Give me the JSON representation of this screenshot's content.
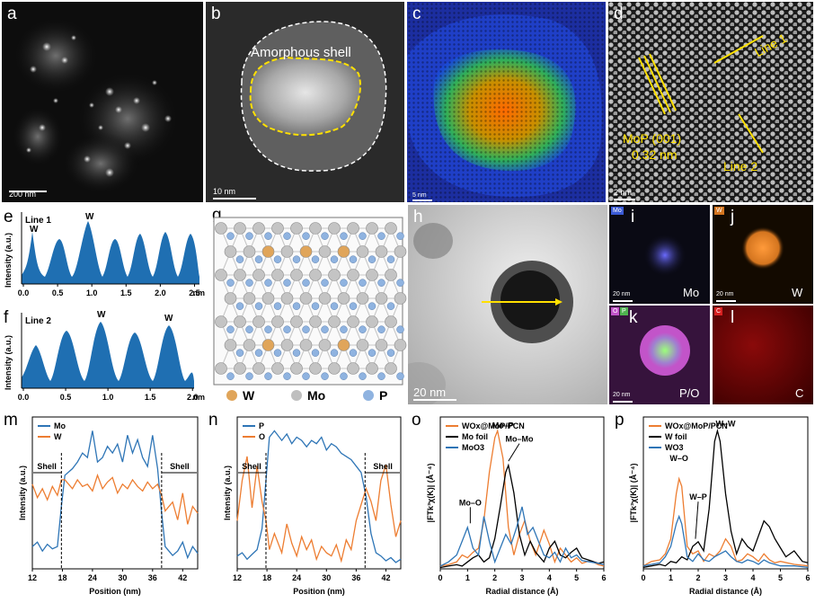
{
  "panels": {
    "a": {
      "letter": "a",
      "scale": "200 nm"
    },
    "b": {
      "letter": "b",
      "scale": "10 nm",
      "label": "Amorphous shell"
    },
    "c": {
      "letter": "c",
      "scale": "5 nm"
    },
    "d": {
      "letter": "d",
      "scale": "2 nm",
      "line1": "Line 1",
      "line2": "Line 2",
      "plane": "MoP (001)",
      "spacing": "0.32 nm"
    },
    "e": {
      "letter": "e",
      "title": "Line 1",
      "ylabel": "Intensity (a.u.)",
      "ticks": [
        "0.0",
        "0.5",
        "1.0",
        "1.5",
        "2.0",
        "2.5"
      ],
      "unit": "nm",
      "peak_label": "W"
    },
    "f": {
      "letter": "f",
      "title": "Line 2",
      "ylabel": "Intensity (a.u.)",
      "ticks": [
        "0.0",
        "0.5",
        "1.0",
        "1.5",
        "2.0"
      ],
      "unit": "nm",
      "peak_label": "W"
    },
    "g": {
      "letter": "g",
      "legend": [
        "W",
        "Mo",
        "P"
      ]
    },
    "h": {
      "letter": "h",
      "scale": "20 nm"
    },
    "i": {
      "letter": "i",
      "tag": "Mo",
      "label": "Mo",
      "scale": "20 nm"
    },
    "j": {
      "letter": "j",
      "tag": "W",
      "label": "W",
      "scale": "20 nm"
    },
    "k": {
      "letter": "k",
      "tag1": "O",
      "tag2": "P",
      "label": "P/O",
      "scale": "20 nm"
    },
    "l": {
      "letter": "l",
      "tag": "C",
      "label": "C"
    }
  },
  "chart_data": [
    {
      "id": "m",
      "type": "line",
      "title": "",
      "xlabel": "Position (nm)",
      "ylabel": "Intensity (a.u.)",
      "xlim": [
        12,
        45
      ],
      "xticks": [
        "12",
        "18",
        "24",
        "30",
        "36",
        "42"
      ],
      "annotations": [
        "Shell",
        "Shell"
      ],
      "series": [
        {
          "name": "Mo",
          "color": "#2E75B6",
          "x": [
            12,
            13,
            14,
            15,
            16,
            17,
            17.8,
            18.5,
            20,
            21,
            22,
            23,
            24,
            25,
            26,
            27,
            28,
            29,
            30,
            31,
            32,
            33,
            34,
            35,
            36,
            37,
            37.8,
            38.5,
            40,
            41,
            42,
            43,
            44,
            45
          ],
          "y": [
            0.1,
            0.12,
            0.08,
            0.11,
            0.09,
            0.1,
            0.28,
            0.42,
            0.45,
            0.48,
            0.52,
            0.5,
            0.62,
            0.48,
            0.5,
            0.55,
            0.52,
            0.56,
            0.48,
            0.6,
            0.52,
            0.58,
            0.5,
            0.46,
            0.6,
            0.45,
            0.25,
            0.1,
            0.06,
            0.08,
            0.12,
            0.05,
            0.1,
            0.07
          ]
        },
        {
          "name": "W",
          "color": "#ED7D31",
          "x": [
            12,
            13,
            14,
            15,
            16,
            17,
            17.8,
            18.5,
            20,
            21,
            22,
            23,
            24,
            25,
            26,
            27,
            28,
            29,
            30,
            31,
            32,
            33,
            34,
            35,
            36,
            37,
            37.8,
            38.5,
            40,
            41,
            42,
            43,
            44,
            45
          ],
          "y": [
            0.38,
            0.32,
            0.36,
            0.31,
            0.37,
            0.33,
            0.4,
            0.4,
            0.36,
            0.4,
            0.37,
            0.38,
            0.35,
            0.42,
            0.36,
            0.39,
            0.41,
            0.34,
            0.38,
            0.36,
            0.4,
            0.37,
            0.35,
            0.39,
            0.36,
            0.38,
            0.33,
            0.26,
            0.3,
            0.22,
            0.34,
            0.2,
            0.28,
            0.25
          ]
        }
      ]
    },
    {
      "id": "n",
      "type": "line",
      "title": "",
      "xlabel": "Position (nm)",
      "ylabel": "Intensity (a.u.)",
      "xlim": [
        12,
        45
      ],
      "xticks": [
        "12",
        "18",
        "24",
        "30",
        "36",
        "42"
      ],
      "annotations": [
        "Shell",
        "Shell"
      ],
      "series": [
        {
          "name": "P",
          "color": "#2E75B6",
          "x": [
            12,
            13,
            14,
            15,
            16,
            17,
            17.8,
            18.5,
            19.5,
            21,
            22,
            23,
            24,
            25,
            26,
            27,
            28,
            29,
            30,
            31,
            32,
            33,
            34,
            35,
            36,
            37,
            38,
            39,
            40,
            41,
            42,
            43,
            44,
            45
          ],
          "y": [
            0.08,
            0.1,
            0.06,
            0.09,
            0.12,
            0.25,
            0.55,
            0.82,
            0.86,
            0.8,
            0.84,
            0.78,
            0.82,
            0.8,
            0.76,
            0.8,
            0.78,
            0.82,
            0.74,
            0.78,
            0.76,
            0.72,
            0.7,
            0.68,
            0.64,
            0.6,
            0.45,
            0.22,
            0.1,
            0.08,
            0.05,
            0.07,
            0.04,
            0.06
          ]
        },
        {
          "name": "O",
          "color": "#ED7D31",
          "x": [
            12,
            13,
            14,
            15,
            16,
            17,
            17.8,
            18.5,
            19.5,
            21,
            22,
            23,
            24,
            25,
            26,
            27,
            28,
            29,
            30,
            31,
            32,
            33,
            34,
            35,
            36,
            37,
            38,
            39,
            40,
            41,
            42,
            43,
            44,
            45
          ],
          "y": [
            0.3,
            0.55,
            0.7,
            0.38,
            0.64,
            0.42,
            0.3,
            0.12,
            0.22,
            0.1,
            0.28,
            0.16,
            0.08,
            0.2,
            0.12,
            0.18,
            0.06,
            0.14,
            0.1,
            0.08,
            0.15,
            0.05,
            0.18,
            0.12,
            0.3,
            0.4,
            0.5,
            0.42,
            0.3,
            0.55,
            0.65,
            0.4,
            0.2,
            0.3
          ]
        }
      ]
    },
    {
      "id": "o",
      "type": "line",
      "title": "",
      "xlabel": "Radial distance (Å)",
      "ylabel": "|FTk³χ(K)| (Å⁻⁴)",
      "xlim": [
        0,
        6
      ],
      "xticks": [
        "0",
        "1",
        "2",
        "3",
        "4",
        "5",
        "6"
      ],
      "annotations": [
        "Mo–P",
        "Mo–Mo",
        "Mo–O"
      ],
      "series": [
        {
          "name": "WOx@MoP/PCN",
          "color": "#ED7D31",
          "x": [
            0,
            0.3,
            0.6,
            0.8,
            1.0,
            1.2,
            1.4,
            1.6,
            1.8,
            2.0,
            2.1,
            2.3,
            2.5,
            2.7,
            2.9,
            3.1,
            3.3,
            3.5,
            3.8,
            4.0,
            4.2,
            4.4,
            4.6,
            4.8,
            5.0,
            5.2,
            5.5,
            5.8,
            6.0
          ],
          "y": [
            0.02,
            0.03,
            0.05,
            0.1,
            0.08,
            0.12,
            0.15,
            0.35,
            0.7,
            0.95,
            1.0,
            0.8,
            0.3,
            0.1,
            0.25,
            0.35,
            0.2,
            0.1,
            0.28,
            0.18,
            0.05,
            0.15,
            0.1,
            0.05,
            0.08,
            0.04,
            0.06,
            0.03,
            0.02
          ]
        },
        {
          "name": "Mo foil",
          "color": "#000000",
          "x": [
            0,
            0.3,
            0.6,
            0.8,
            1.0,
            1.2,
            1.4,
            1.6,
            1.8,
            2.0,
            2.2,
            2.4,
            2.5,
            2.7,
            2.9,
            3.1,
            3.3,
            3.5,
            3.8,
            4.0,
            4.2,
            4.4,
            4.6,
            4.8,
            5.0,
            5.2,
            5.5,
            5.8,
            6.0
          ],
          "y": [
            0.01,
            0.02,
            0.03,
            0.02,
            0.05,
            0.08,
            0.1,
            0.05,
            0.08,
            0.22,
            0.45,
            0.7,
            0.75,
            0.55,
            0.25,
            0.1,
            0.2,
            0.12,
            0.05,
            0.15,
            0.2,
            0.1,
            0.08,
            0.12,
            0.15,
            0.08,
            0.06,
            0.04,
            0.05
          ]
        },
        {
          "name": "MoO3",
          "color": "#2E75B6",
          "x": [
            0,
            0.3,
            0.6,
            0.8,
            1.0,
            1.2,
            1.4,
            1.6,
            1.8,
            2.0,
            2.2,
            2.4,
            2.6,
            2.8,
            3.0,
            3.2,
            3.4,
            3.6,
            3.8,
            4.0,
            4.2,
            4.4,
            4.6,
            4.8,
            5.0,
            5.2,
            5.5,
            5.8,
            6.0
          ],
          "y": [
            0.02,
            0.05,
            0.1,
            0.2,
            0.3,
            0.15,
            0.1,
            0.38,
            0.2,
            0.05,
            0.15,
            0.25,
            0.18,
            0.3,
            0.45,
            0.25,
            0.3,
            0.2,
            0.1,
            0.08,
            0.12,
            0.05,
            0.15,
            0.08,
            0.1,
            0.06,
            0.05,
            0.04,
            0.03
          ]
        }
      ]
    },
    {
      "id": "p",
      "type": "line",
      "title": "",
      "xlabel": "Radial distance (Å)",
      "ylabel": "|FTk³χ(K)| (Å⁻⁴)",
      "xlim": [
        0,
        6
      ],
      "xticks": [
        "0",
        "1",
        "2",
        "3",
        "4",
        "5",
        "6"
      ],
      "annotations": [
        "W–W",
        "W–O",
        "W–P"
      ],
      "series": [
        {
          "name": "WOx@MoP/PCN",
          "color": "#ED7D31",
          "x": [
            0,
            0.3,
            0.6,
            0.8,
            1.0,
            1.2,
            1.3,
            1.4,
            1.6,
            1.8,
            2.0,
            2.2,
            2.4,
            2.6,
            2.8,
            3.0,
            3.2,
            3.4,
            3.6,
            3.8,
            4.0,
            4.2,
            4.4,
            4.6,
            4.8,
            5.0,
            5.5,
            6.0
          ],
          "y": [
            0.02,
            0.05,
            0.06,
            0.1,
            0.2,
            0.5,
            0.6,
            0.55,
            0.15,
            0.1,
            0.12,
            0.05,
            0.1,
            0.08,
            0.12,
            0.2,
            0.15,
            0.05,
            0.06,
            0.1,
            0.08,
            0.05,
            0.1,
            0.06,
            0.04,
            0.05,
            0.03,
            0.02
          ]
        },
        {
          "name": "W foil",
          "color": "#000000",
          "x": [
            0,
            0.3,
            0.6,
            0.8,
            1.0,
            1.2,
            1.4,
            1.6,
            1.8,
            2.0,
            2.2,
            2.4,
            2.6,
            2.7,
            2.8,
            3.0,
            3.2,
            3.4,
            3.6,
            3.8,
            4.0,
            4.2,
            4.4,
            4.6,
            4.8,
            5.0,
            5.2,
            5.5,
            5.8,
            6.0
          ],
          "y": [
            0.01,
            0.02,
            0.03,
            0.02,
            0.05,
            0.04,
            0.08,
            0.06,
            0.15,
            0.18,
            0.12,
            0.4,
            0.85,
            0.92,
            0.85,
            0.5,
            0.25,
            0.1,
            0.2,
            0.15,
            0.12,
            0.22,
            0.32,
            0.28,
            0.2,
            0.14,
            0.08,
            0.12,
            0.05,
            0.04
          ]
        },
        {
          "name": "WO3",
          "color": "#2E75B6",
          "x": [
            0,
            0.3,
            0.6,
            0.8,
            1.0,
            1.2,
            1.3,
            1.4,
            1.6,
            1.8,
            2.0,
            2.2,
            2.4,
            2.6,
            2.8,
            3.0,
            3.2,
            3.4,
            3.6,
            3.8,
            4.0,
            4.2,
            4.4,
            4.6,
            4.8,
            5.0,
            5.5,
            6.0
          ],
          "y": [
            0.02,
            0.03,
            0.04,
            0.08,
            0.15,
            0.3,
            0.35,
            0.3,
            0.08,
            0.05,
            0.1,
            0.06,
            0.05,
            0.08,
            0.1,
            0.12,
            0.08,
            0.05,
            0.04,
            0.06,
            0.05,
            0.03,
            0.06,
            0.04,
            0.03,
            0.02,
            0.02,
            0.01
          ]
        }
      ]
    }
  ]
}
